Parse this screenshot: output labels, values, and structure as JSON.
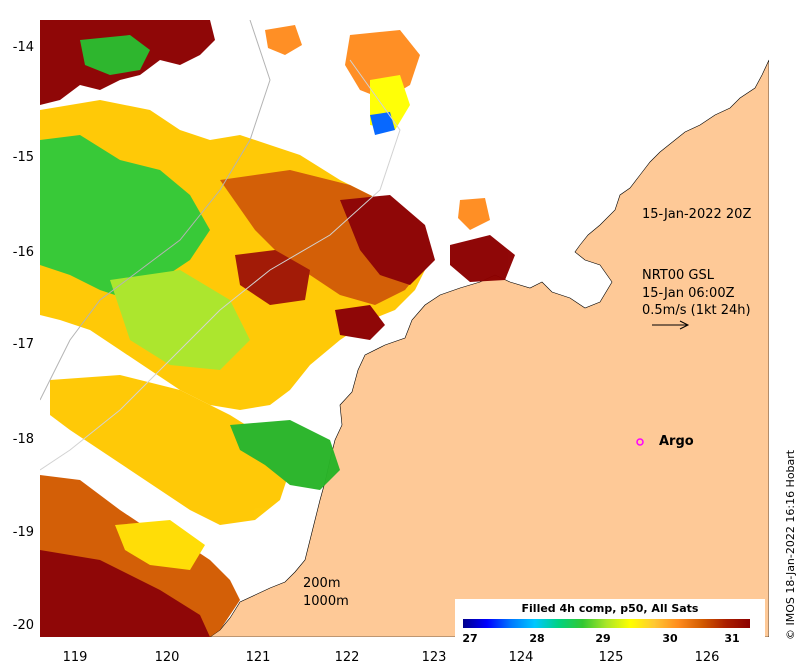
{
  "map": {
    "y_ticks": [
      "-14",
      "-15",
      "-16",
      "-17",
      "-18",
      "-19",
      "-20"
    ],
    "x_ticks": [
      "119",
      "120",
      "121",
      "122",
      "123",
      "124",
      "125",
      "126"
    ],
    "timestamp_label": "15-Jan-2022 20Z",
    "current_info": {
      "line1": "NRT00 GSL",
      "line2": "15-Jan 06:00Z",
      "line3": "0.5m/s (1kt 24h)"
    },
    "argo_label": "Argo",
    "depth_labels": [
      "200m",
      "1000m"
    ],
    "colorbar": {
      "title": "Filled 4h comp, p50, All Sats",
      "ticks": [
        "27",
        "28",
        "29",
        "30",
        "31"
      ]
    },
    "copyright": "© IMOS 18-Jan-2022 16:16 Hobart",
    "colors": {
      "land": "#fec997",
      "argo_marker": "#ff00ff",
      "sst_hot": "#8c0000",
      "sst_cold": "#00008c"
    }
  }
}
